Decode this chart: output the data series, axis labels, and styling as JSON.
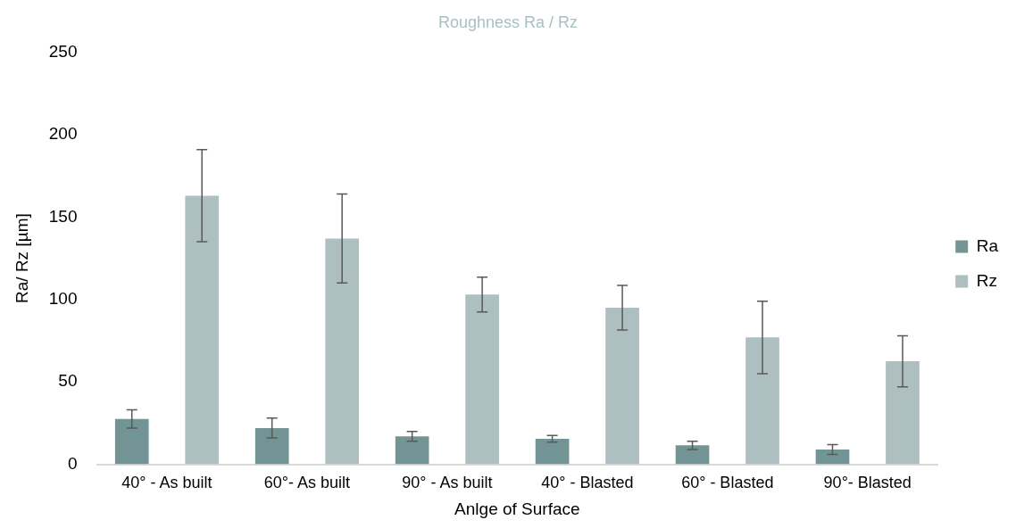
{
  "chart_data": {
    "type": "bar",
    "title": "Roughness Ra / Rz",
    "xlabel": "Anlge of Surface",
    "ylabel": "Ra/ Rz [µm]",
    "categories": [
      "40° - As built",
      "60°- As built",
      "90° - As built",
      "40° - Blasted",
      "60° - Blasted",
      "90°- Blasted"
    ],
    "series": [
      {
        "name": "Ra",
        "color": "#739494",
        "values": [
          27.5,
          22,
          17,
          15.5,
          11.5,
          9
        ],
        "errors": [
          5.5,
          6,
          3,
          2,
          2.5,
          3
        ]
      },
      {
        "name": "Rz",
        "color": "#adbfc0",
        "values": [
          163,
          137,
          103,
          95,
          77,
          62.5
        ],
        "errors": [
          28,
          27,
          10.5,
          13.5,
          22,
          15.5
        ]
      }
    ],
    "ylim": [
      0,
      250
    ],
    "yticks": [
      0,
      50,
      100,
      150,
      200,
      250
    ],
    "grid": false,
    "legend": "right"
  }
}
